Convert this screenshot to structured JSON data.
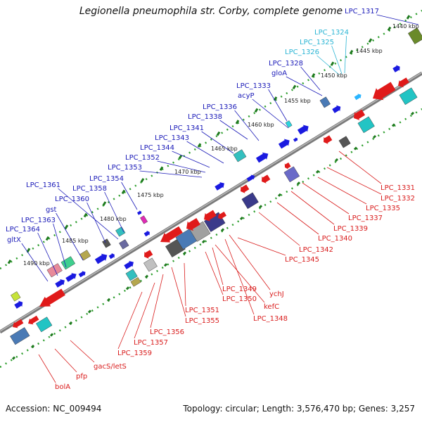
{
  "title": "Legionella pneumophila str. Corby, complete genome",
  "accession": "Accession: NC_009494",
  "summary": "Topology: circular; Length: 3,576,470 bp; Genes: 3,257",
  "colors": {
    "forward_label": "#1a1ab8",
    "forward_label_cyan": "#2bb5d4",
    "reverse_label": "#d91c1c",
    "backbone": "#808080",
    "tick_dot": "#2e9e2e",
    "tick_dash": "#1e7a1e"
  },
  "kbp_ticks": [
    "1440 kbp",
    "1445 kbp",
    "1450 kbp",
    "1455 kbp",
    "1460 kbp",
    "1465 kbp",
    "1470 kbp",
    "1475 kbp",
    "1480 kbp",
    "1485 kbp",
    "1490 kbp"
  ],
  "forward_labels": [
    "LPC_1317",
    "LPC_1324",
    "LPC_1325",
    "LPC_1326",
    "LPC_1328",
    "gloA",
    "LPC_1333",
    "acyP",
    "LPC_1336",
    "LPC_1338",
    "LPC_1341",
    "LPC_1343",
    "LPC_1344",
    "LPC_1352",
    "LPC_1353",
    "LPC_1354",
    "LPC_1358",
    "LPC_1361",
    "LPC_1360",
    "gst",
    "LPC_1363",
    "LPC_1364",
    "gltX"
  ],
  "reverse_labels": [
    "LPC_1331",
    "LPC_1332",
    "LPC_1335",
    "LPC_1337",
    "LPC_1339",
    "LPC_1340",
    "LPC_1342",
    "LPC_1345",
    "ychJ",
    "LPC_1349",
    "kefC",
    "LPC_1350",
    "LPC_1348",
    "LPC_1351",
    "LPC_1355",
    "LPC_1356",
    "LPC_1357",
    "LPC_1359",
    "gacS/letS",
    "pfp",
    "bolA"
  ]
}
